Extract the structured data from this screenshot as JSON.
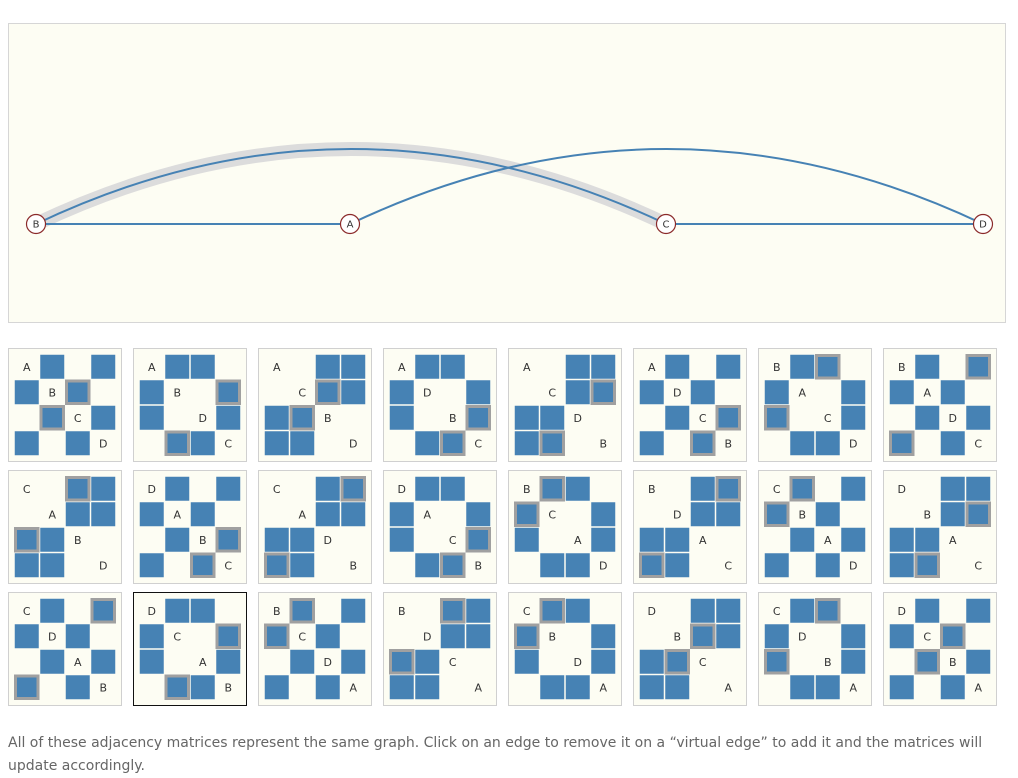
{
  "graph": {
    "nodes": [
      {
        "id": "B",
        "label": "B"
      },
      {
        "id": "A",
        "label": "A"
      },
      {
        "id": "C",
        "label": "C"
      },
      {
        "id": "D",
        "label": "D"
      }
    ],
    "edges": [
      {
        "source": "B",
        "target": "A",
        "kind": "straight",
        "highlighted": false
      },
      {
        "source": "C",
        "target": "D",
        "kind": "straight",
        "highlighted": false
      },
      {
        "source": "B",
        "target": "C",
        "kind": "arc",
        "highlighted": true
      },
      {
        "source": "A",
        "target": "D",
        "kind": "arc",
        "highlighted": false
      }
    ],
    "colors": {
      "edge": "#4682b4",
      "highlight": "#dcdcdc",
      "node_stroke": "#8b2a2a",
      "node_fill": "#ffffff",
      "panel_bg": "#fdfdf3"
    }
  },
  "matrices": [
    {
      "order": [
        "A",
        "B",
        "C",
        "D"
      ],
      "selected": false
    },
    {
      "order": [
        "A",
        "B",
        "D",
        "C"
      ],
      "selected": false
    },
    {
      "order": [
        "A",
        "C",
        "B",
        "D"
      ],
      "selected": false
    },
    {
      "order": [
        "A",
        "D",
        "B",
        "C"
      ],
      "selected": false
    },
    {
      "order": [
        "A",
        "C",
        "D",
        "B"
      ],
      "selected": false
    },
    {
      "order": [
        "A",
        "D",
        "C",
        "B"
      ],
      "selected": false
    },
    {
      "order": [
        "B",
        "A",
        "C",
        "D"
      ],
      "selected": false
    },
    {
      "order": [
        "B",
        "A",
        "D",
        "C"
      ],
      "selected": false
    },
    {
      "order": [
        "C",
        "A",
        "B",
        "D"
      ],
      "selected": false
    },
    {
      "order": [
        "D",
        "A",
        "B",
        "C"
      ],
      "selected": false
    },
    {
      "order": [
        "C",
        "A",
        "D",
        "B"
      ],
      "selected": false
    },
    {
      "order": [
        "D",
        "A",
        "C",
        "B"
      ],
      "selected": false
    },
    {
      "order": [
        "B",
        "C",
        "A",
        "D"
      ],
      "selected": false
    },
    {
      "order": [
        "B",
        "D",
        "A",
        "C"
      ],
      "selected": false
    },
    {
      "order": [
        "C",
        "B",
        "A",
        "D"
      ],
      "selected": false
    },
    {
      "order": [
        "D",
        "B",
        "A",
        "C"
      ],
      "selected": false
    },
    {
      "order": [
        "C",
        "D",
        "A",
        "B"
      ],
      "selected": false
    },
    {
      "order": [
        "D",
        "C",
        "A",
        "B"
      ],
      "selected": true
    },
    {
      "order": [
        "B",
        "C",
        "D",
        "A"
      ],
      "selected": false
    },
    {
      "order": [
        "B",
        "D",
        "C",
        "A"
      ],
      "selected": false
    },
    {
      "order": [
        "C",
        "B",
        "D",
        "A"
      ],
      "selected": false
    },
    {
      "order": [
        "D",
        "B",
        "C",
        "A"
      ],
      "selected": false
    },
    {
      "order": [
        "C",
        "D",
        "B",
        "A"
      ],
      "selected": false
    },
    {
      "order": [
        "D",
        "C",
        "B",
        "A"
      ],
      "selected": false
    }
  ],
  "matrix_colors": {
    "cell": "#4682b4",
    "highlight_border": "#a0a0a0"
  },
  "caption": "All of these adjacency matrices represent the same graph. Click on an edge to remove it on a “virtual edge” to add it and the matrices will update accordingly."
}
